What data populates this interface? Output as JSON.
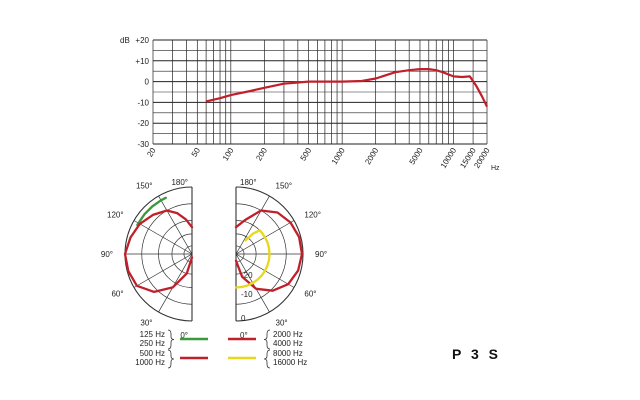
{
  "model_label": "P 3 S",
  "colors": {
    "green": "#3a9a3a",
    "red": "#c0202a",
    "yellow": "#e8d81a",
    "grid": "#222222"
  },
  "chart_data": [
    {
      "type": "line",
      "name": "frequency-response",
      "x_scale": "log",
      "xlim": [
        20,
        20000
      ],
      "ylim": [
        -30,
        20
      ],
      "x_ticks": [
        20,
        50,
        100,
        200,
        500,
        1000,
        2000,
        5000,
        10000,
        15000,
        20000
      ],
      "x_tick_labels": [
        "20",
        "50",
        "100",
        "200",
        "500",
        "1000",
        "2000",
        "5000",
        "10000",
        "15000",
        "20000"
      ],
      "x_unit": "Hz",
      "y_ticks": [
        20,
        10,
        0,
        -10,
        -20,
        -30
      ],
      "y_tick_labels": [
        "+20",
        "+10",
        "0",
        "-10",
        "-20",
        "-30"
      ],
      "y_unit": "dB",
      "grid": true,
      "series": [
        {
          "color": "#c0202a",
          "x": [
            60,
            80,
            100,
            150,
            200,
            300,
            500,
            700,
            1000,
            1500,
            2000,
            3000,
            4000,
            5000,
            6000,
            7000,
            8000,
            10000,
            12000,
            14000,
            16000,
            18000,
            20000
          ],
          "y": [
            -9.5,
            -8,
            -6.5,
            -4.5,
            -3,
            -1,
            0,
            0,
            0,
            0.3,
            1.5,
            4.5,
            5.5,
            6,
            6,
            5.5,
            4.5,
            2.5,
            2.2,
            2.5,
            -2,
            -7,
            -12
          ]
        }
      ]
    },
    {
      "type": "polar",
      "name": "polar-pattern",
      "rlim_db": [
        -20,
        0
      ],
      "r_tick_labels": [
        "-20",
        "-10",
        "0"
      ],
      "angle_labels": [
        "0°",
        "30°",
        "60°",
        "90°",
        "120°",
        "150°",
        "180°"
      ],
      "series": [
        {
          "side": "left",
          "color": "#3a9a3a",
          "angles": [
            118,
            130,
            140,
            150,
            155
          ],
          "r_db": [
            -1.5,
            -1.5,
            -1.5,
            -1.5,
            -1.5
          ]
        },
        {
          "side": "left",
          "color": "#c0202a",
          "angles": [
            0,
            15,
            30,
            45,
            60,
            75,
            90,
            105,
            120,
            135,
            150,
            160,
            170,
            180
          ],
          "r_db": [
            -19,
            -14,
            -8.5,
            -4,
            -1,
            -0.3,
            0,
            -1,
            -2,
            -3.5,
            -5,
            -7,
            -9.5,
            -12
          ]
        },
        {
          "side": "right",
          "color": "#c0202a",
          "angles": [
            0,
            15,
            30,
            45,
            60,
            75,
            90,
            105,
            120,
            135,
            150,
            165,
            180
          ],
          "r_db": [
            -18,
            -13,
            -8,
            -4.5,
            -2,
            -0.8,
            -0.3,
            -0.5,
            -1.2,
            -2.5,
            -5,
            -9.5,
            -12
          ]
        },
        {
          "side": "right",
          "color": "#e8d81a",
          "angles": [
            0,
            10,
            20,
            30,
            40,
            50,
            60,
            70,
            80,
            90,
            100,
            110,
            120,
            130,
            135,
            140,
            145
          ],
          "r_db": [
            -10,
            -10,
            -10,
            -10,
            -10,
            -10,
            -10,
            -10,
            -10,
            -10,
            -10,
            -10,
            -10,
            -10,
            -10,
            -12,
            -15
          ]
        }
      ]
    }
  ],
  "legend": {
    "left_labels": [
      "125 Hz",
      "250 Hz",
      "500 Hz",
      "1000 Hz"
    ],
    "right_labels": [
      "2000 Hz",
      "4000 Hz",
      "8000 Hz",
      "16000 Hz"
    ],
    "left_colors": [
      "#3a9a3a",
      "#c0202a"
    ],
    "right_colors": [
      "#c0202a",
      "#e8d81a"
    ]
  }
}
